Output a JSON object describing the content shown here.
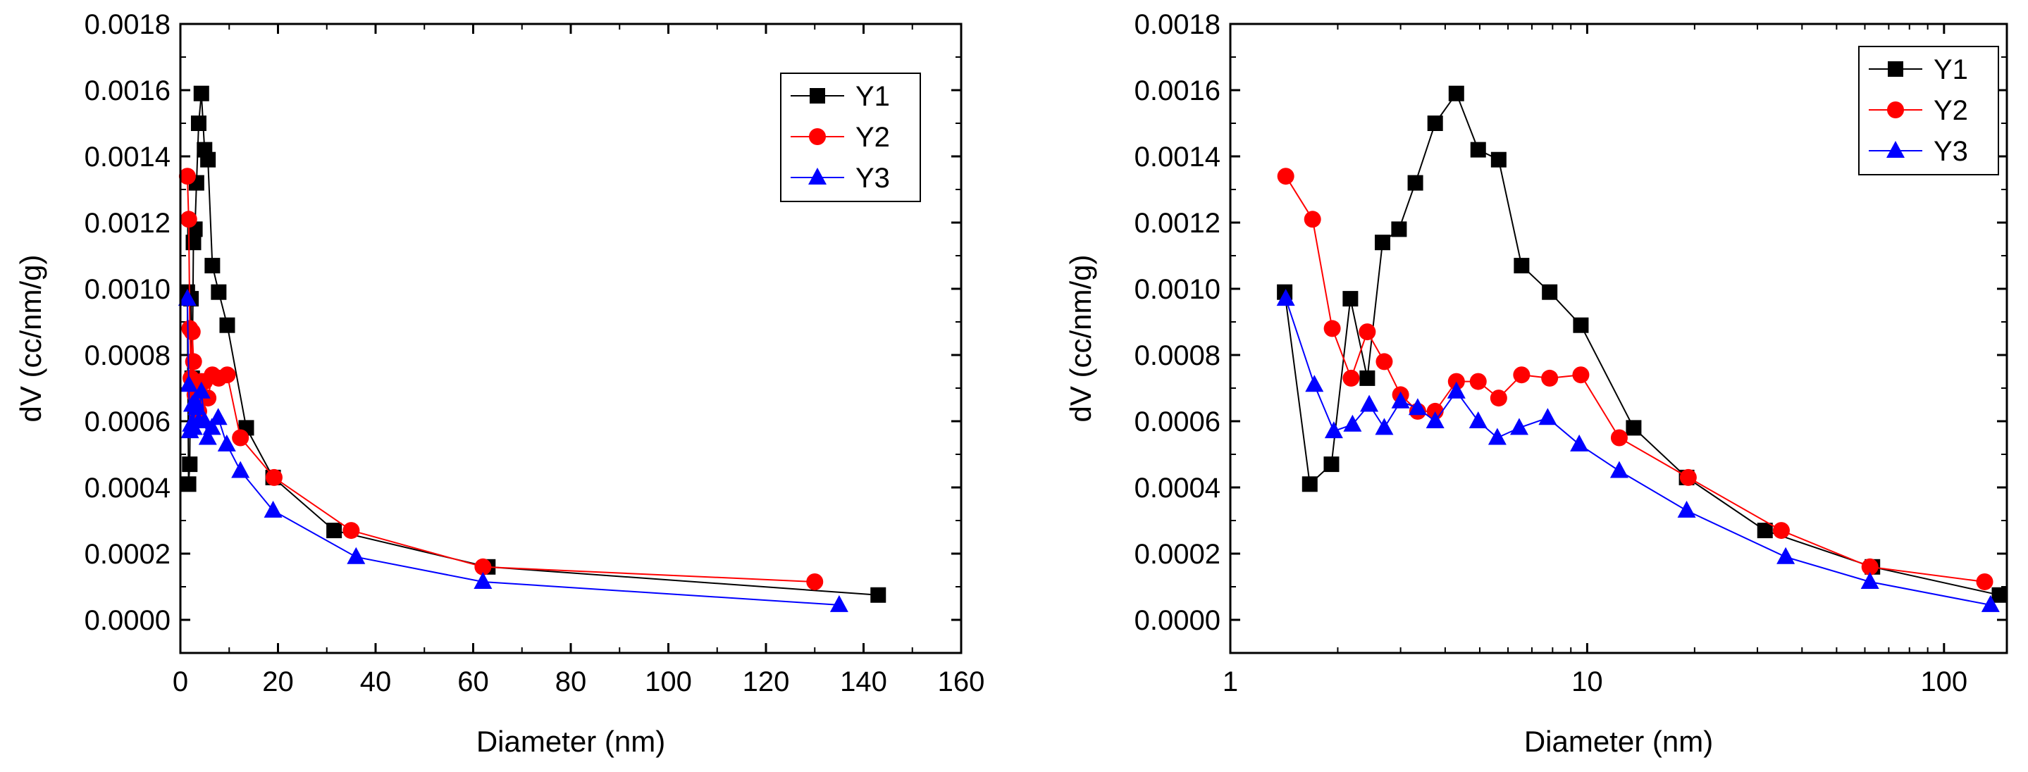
{
  "charts": [
    {
      "id": "linear",
      "type": "line",
      "xscale": "linear",
      "xlabel": "Diameter (nm)",
      "ylabel": "dV (cc/nm/g)",
      "xlim": [
        0,
        160
      ],
      "ylim": [
        -0.0001,
        0.0018
      ],
      "xticks": [
        0,
        20,
        40,
        60,
        80,
        100,
        120,
        140,
        160
      ],
      "xtick_labels": [
        "0",
        "20",
        "40",
        "60",
        "80",
        "100",
        "120",
        "140",
        "160"
      ],
      "yticks": [
        0.0,
        0.0002,
        0.0004,
        0.0006,
        0.0008,
        0.001,
        0.0012,
        0.0014,
        0.0016,
        0.0018
      ],
      "ytick_labels": [
        "0.0000",
        "0.0002",
        "0.0004",
        "0.0006",
        "0.0008",
        "0.0010",
        "0.0012",
        "0.0014",
        "0.0016",
        "0.0018"
      ],
      "legend_position": "top-right"
    },
    {
      "id": "log",
      "type": "line",
      "xscale": "log",
      "xlabel": "Diameter (nm)",
      "ylabel": "dV (cc/nm/g)",
      "xlim": [
        1,
        150
      ],
      "ylim": [
        -0.0001,
        0.0018
      ],
      "xticks": [
        1,
        10,
        100
      ],
      "xtick_labels": [
        "1",
        "10",
        "100"
      ],
      "yticks": [
        0.0,
        0.0002,
        0.0004,
        0.0006,
        0.0008,
        0.001,
        0.0012,
        0.0014,
        0.0016,
        0.0018
      ],
      "ytick_labels": [
        "0.0000",
        "0.0002",
        "0.0004",
        "0.0006",
        "0.0008",
        "0.0010",
        "0.0012",
        "0.0014",
        "0.0016",
        "0.0018"
      ],
      "legend_position": "top-right"
    }
  ],
  "chart_data": {
    "type": "line",
    "xlabel": "Diameter (nm)",
    "ylabel": "dV (cc/nm/g)",
    "series": [
      {
        "name": "Y1",
        "color": "#000000",
        "marker": "square",
        "x": [
          1.42,
          1.67,
          1.92,
          2.17,
          2.42,
          2.67,
          2.97,
          3.3,
          3.75,
          4.3,
          4.95,
          5.65,
          6.55,
          7.85,
          9.6,
          13.5,
          19,
          31.5,
          63,
          143
        ],
        "y": [
          0.00099,
          0.00041,
          0.00047,
          0.00097,
          0.00073,
          0.00114,
          0.00118,
          0.00132,
          0.0015,
          0.00159,
          0.00142,
          0.00139,
          0.00107,
          0.00099,
          0.00089,
          0.00058,
          0.00043,
          0.00027,
          0.00016,
          7.5e-05
        ]
      },
      {
        "name": "Y2",
        "color": "#ff0000",
        "marker": "circle",
        "x": [
          1.43,
          1.7,
          1.93,
          2.18,
          2.42,
          2.7,
          3.0,
          3.35,
          3.75,
          4.3,
          4.95,
          5.65,
          6.55,
          7.85,
          9.6,
          12.3,
          19.2,
          35,
          62,
          130
        ],
        "y": [
          0.00134,
          0.00121,
          0.00088,
          0.00073,
          0.00087,
          0.00078,
          0.00068,
          0.00063,
          0.00063,
          0.00072,
          0.00072,
          0.00067,
          0.00074,
          0.00073,
          0.00074,
          0.00055,
          0.00043,
          0.00027,
          0.00016,
          0.000115
        ]
      },
      {
        "name": "Y3",
        "color": "#0000ff",
        "marker": "triangle",
        "x": [
          1.43,
          1.72,
          1.95,
          2.2,
          2.45,
          2.7,
          3.0,
          3.35,
          3.75,
          4.3,
          4.95,
          5.6,
          6.45,
          7.75,
          9.5,
          12.3,
          19,
          36,
          62,
          135
        ],
        "y": [
          0.00097,
          0.00071,
          0.00057,
          0.00059,
          0.00065,
          0.00058,
          0.00066,
          0.00064,
          0.0006,
          0.00069,
          0.0006,
          0.00055,
          0.00058,
          0.00061,
          0.00053,
          0.00045,
          0.00033,
          0.00019,
          0.000115,
          4.5e-05
        ]
      }
    ]
  }
}
